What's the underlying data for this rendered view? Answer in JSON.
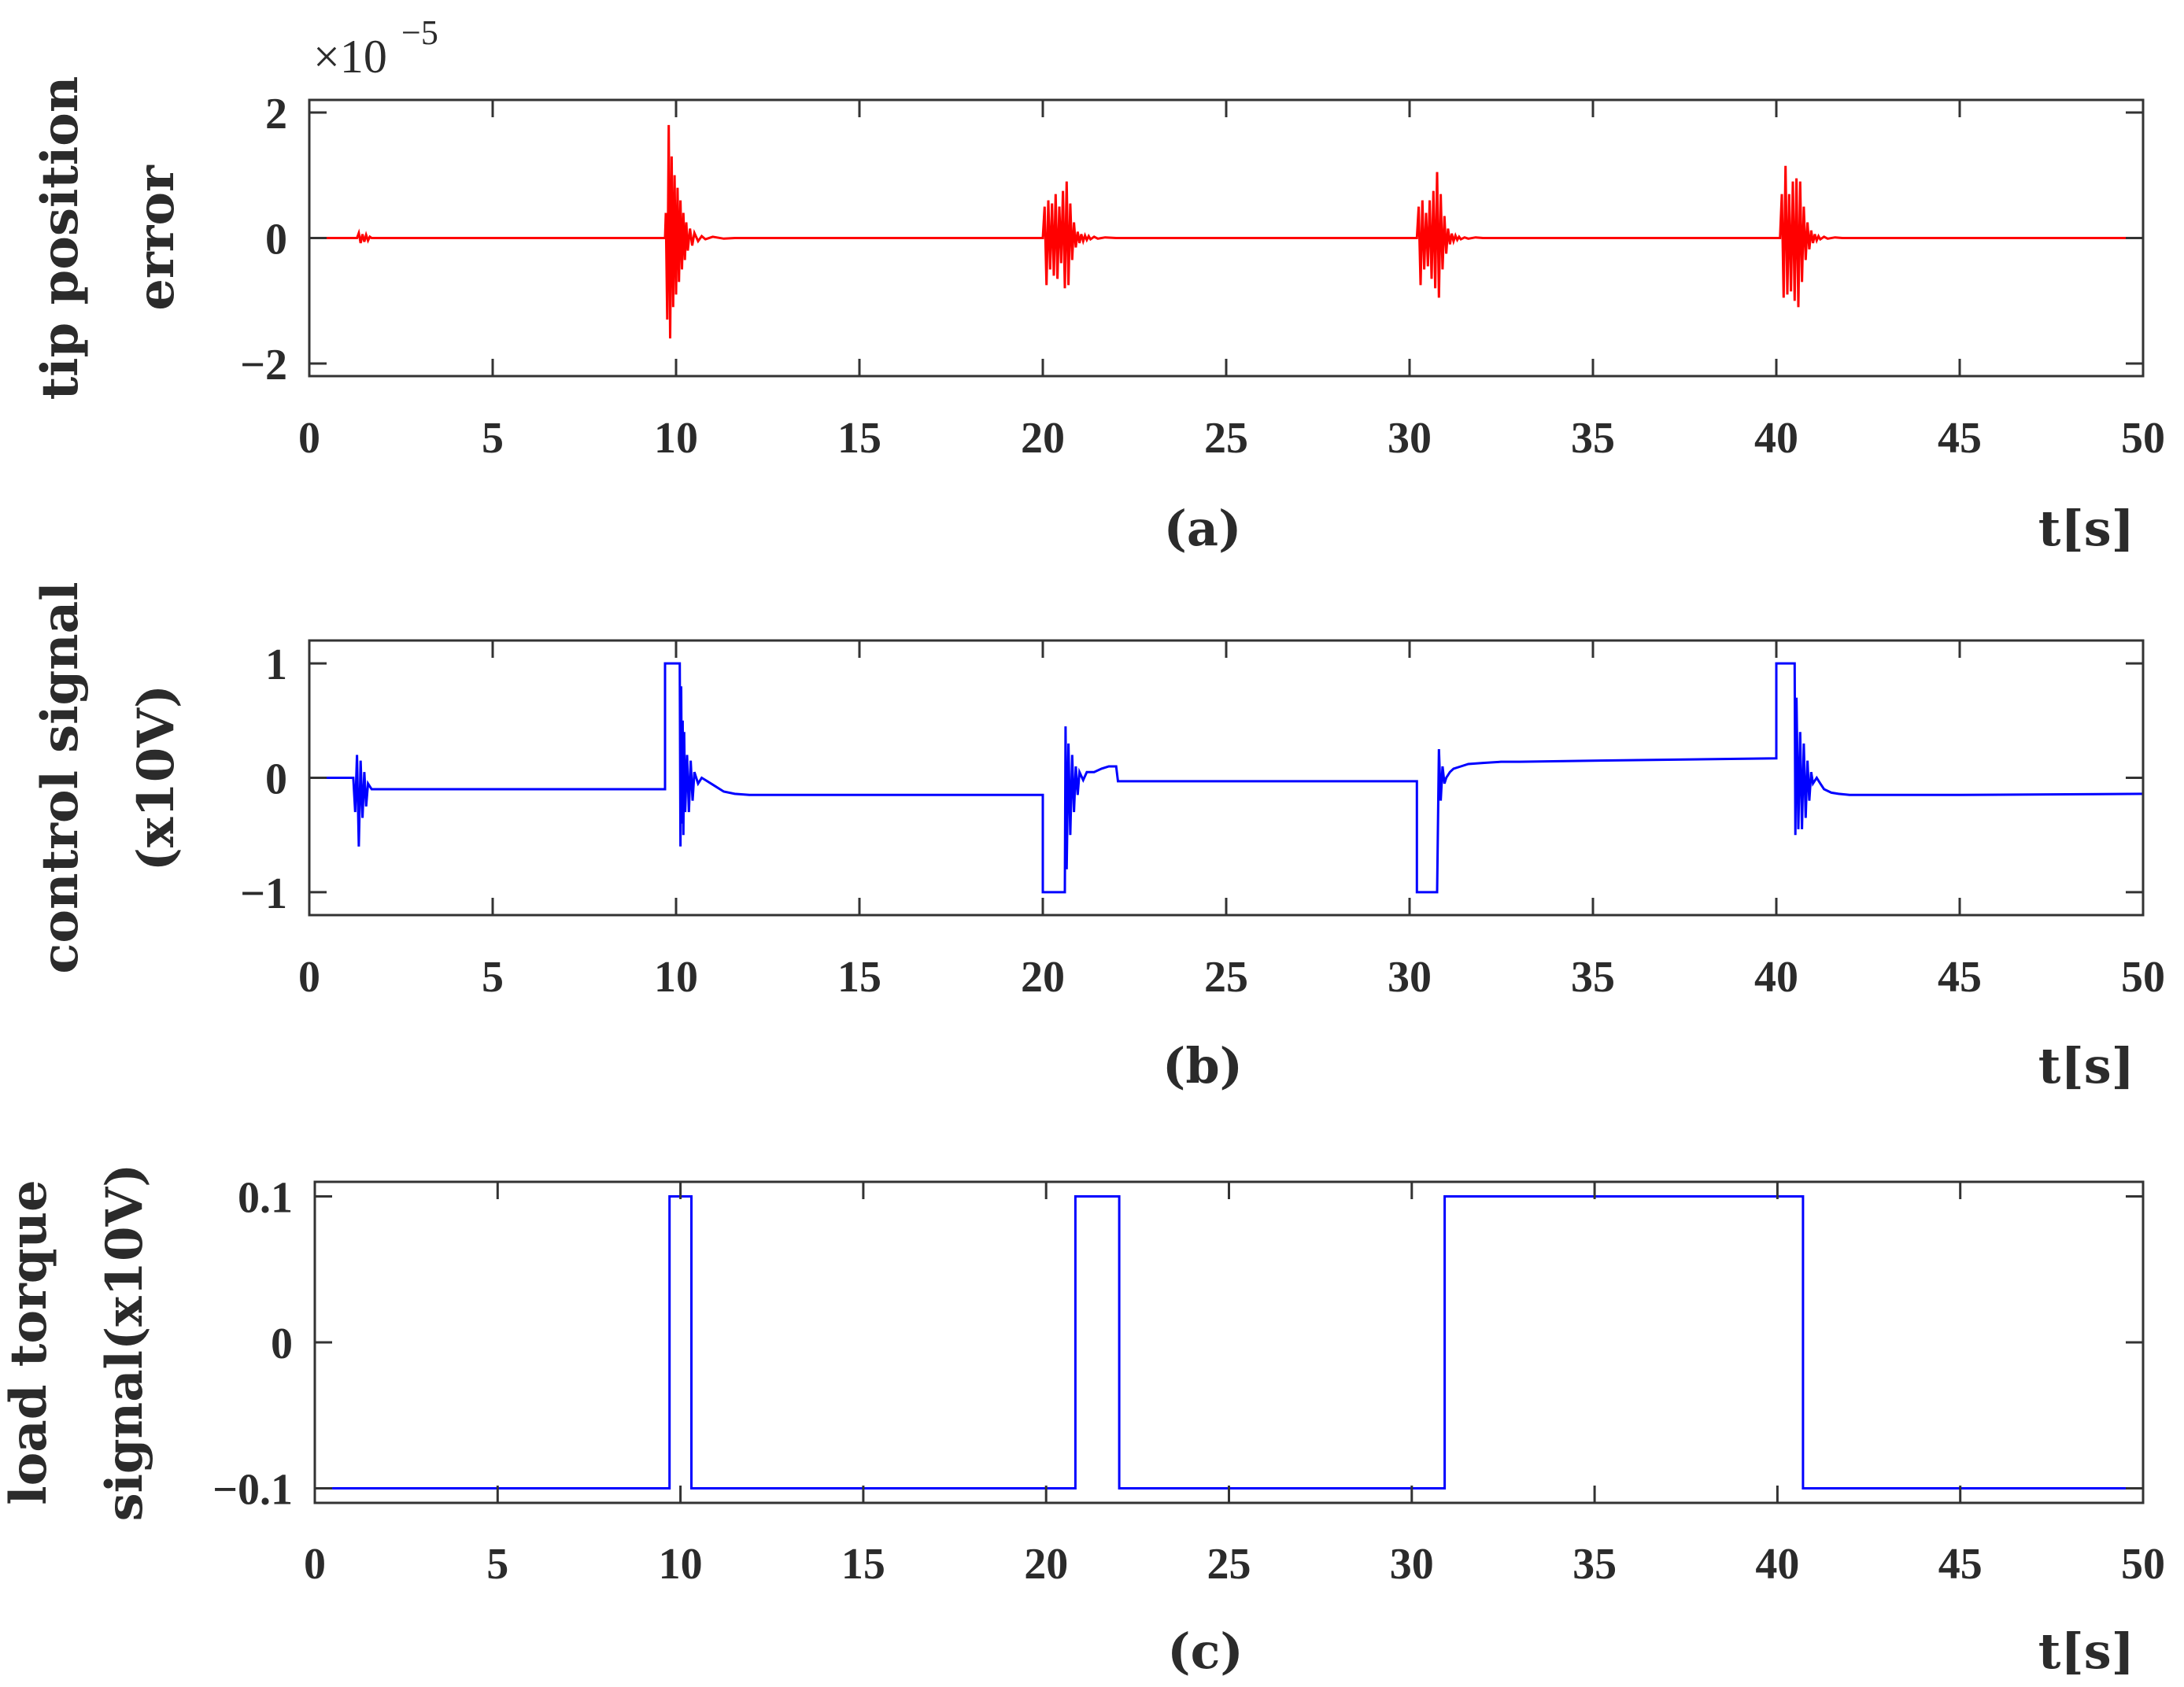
{
  "figure": {
    "chart_data": [
      {
        "type": "line",
        "panel": "a",
        "caption": "(a)",
        "xlabel": "t[s]",
        "ylabel_lines": [
          "tip position",
          "error"
        ],
        "exponent_label": "×10",
        "exponent_power": "−5",
        "xlim": [
          0,
          50
        ],
        "ylim": [
          -2.2,
          2.2
        ],
        "xticks": [
          0,
          5,
          10,
          15,
          20,
          25,
          30,
          35,
          40,
          45,
          50
        ],
        "xtick_labels": [
          "0",
          "5",
          "10",
          "15",
          "20",
          "25",
          "30",
          "35",
          "40",
          "45",
          "50"
        ],
        "yticks": [
          -2,
          0,
          2
        ],
        "ytick_labels": [
          "−2",
          "0",
          "2"
        ],
        "line_color": "#ff0000",
        "series": [
          {
            "x": [
              0,
              1.3,
              1.35,
              1.4,
              1.45,
              1.5,
              1.55,
              1.6,
              1.65,
              1.7,
              1.8,
              9.7,
              9.72,
              9.76,
              9.8,
              9.84,
              9.88,
              9.92,
              9.96,
              10.0,
              10.04,
              10.08,
              10.12,
              10.16,
              10.2,
              10.24,
              10.28,
              10.32,
              10.38,
              10.44,
              10.5,
              10.6,
              10.7,
              10.8,
              11.0,
              11.3,
              11.6,
              12.0,
              20.0,
              20.05,
              20.1,
              20.15,
              20.2,
              20.25,
              20.3,
              20.35,
              20.4,
              20.45,
              20.5,
              20.55,
              20.6,
              20.65,
              20.7,
              20.75,
              20.8,
              20.85,
              20.9,
              20.95,
              21.0,
              21.05,
              21.1,
              21.15,
              21.2,
              21.25,
              21.3,
              21.4,
              21.5,
              21.7,
              22.0,
              22.5,
              30.2,
              30.25,
              30.3,
              30.35,
              30.4,
              30.45,
              30.5,
              30.55,
              30.6,
              30.65,
              30.7,
              30.75,
              30.8,
              30.85,
              30.9,
              30.95,
              31.0,
              31.05,
              31.1,
              31.15,
              31.2,
              31.25,
              31.3,
              31.35,
              31.4,
              31.5,
              31.6,
              31.8,
              32.0,
              32.5,
              40.1,
              40.15,
              40.2,
              40.25,
              40.3,
              40.35,
              40.4,
              40.45,
              40.5,
              40.55,
              40.6,
              40.65,
              40.7,
              40.75,
              40.8,
              40.85,
              40.9,
              40.95,
              41.0,
              41.05,
              41.1,
              41.15,
              41.2,
              41.3,
              41.4,
              41.6,
              41.8,
              42.2,
              50
            ],
            "y": [
              0,
              0,
              0.08,
              -0.08,
              0.06,
              -0.06,
              0.05,
              -0.04,
              0.02,
              0,
              0,
              0,
              0.4,
              -1.3,
              1.8,
              -1.6,
              1.3,
              -1.1,
              1.0,
              -0.9,
              0.8,
              -0.7,
              0.6,
              -0.5,
              0.4,
              -0.35,
              0.25,
              -0.2,
              0.15,
              -0.12,
              0.08,
              -0.05,
              0.03,
              -0.02,
              0.02,
              -0.01,
              0,
              0,
              0,
              0.5,
              -0.75,
              0.6,
              -0.5,
              0.55,
              -0.6,
              0.7,
              -0.65,
              0.5,
              -0.4,
              0.75,
              -0.8,
              0.9,
              -0.75,
              0.55,
              -0.35,
              0.25,
              -0.15,
              0.1,
              -0.08,
              0.06,
              -0.05,
              0.04,
              -0.03,
              0.03,
              -0.02,
              0.02,
              -0.01,
              0.01,
              0,
              0,
              0,
              0.5,
              -0.75,
              0.6,
              -0.5,
              0.4,
              -0.45,
              0.6,
              -0.65,
              0.75,
              -0.8,
              1.05,
              -0.95,
              0.7,
              -0.5,
              0.35,
              -0.25,
              0.15,
              -0.1,
              0.07,
              -0.05,
              0.04,
              -0.03,
              0.02,
              -0.02,
              0.01,
              -0.01,
              0.01,
              0,
              0,
              0,
              0.7,
              -0.95,
              1.15,
              -0.9,
              0.7,
              -0.85,
              0.9,
              -1.0,
              0.95,
              -1.1,
              0.9,
              -0.7,
              0.5,
              -0.35,
              0.25,
              -0.18,
              0.12,
              -0.08,
              0.06,
              -0.04,
              0.03,
              -0.02,
              0.02,
              -0.01,
              0.01,
              0,
              0,
              0
            ]
          }
        ]
      },
      {
        "type": "line",
        "panel": "b",
        "caption": "(b)",
        "xlabel": "t[s]",
        "ylabel_lines": [
          "control signal",
          "(x10V)"
        ],
        "xlim": [
          0,
          50
        ],
        "ylim": [
          -1.2,
          1.2
        ],
        "xticks": [
          0,
          5,
          10,
          15,
          20,
          25,
          30,
          35,
          40,
          45,
          50
        ],
        "xtick_labels": [
          "0",
          "5",
          "10",
          "15",
          "20",
          "25",
          "30",
          "35",
          "40",
          "45",
          "50"
        ],
        "yticks": [
          -1,
          0,
          1
        ],
        "ytick_labels": [
          "−1",
          "0",
          "1"
        ],
        "line_color": "#0000ff",
        "series": [
          {
            "x": [
              0,
              1.2,
              1.25,
              1.3,
              1.35,
              1.4,
              1.45,
              1.5,
              1.55,
              1.6,
              1.7,
              1.8,
              5,
              9.7,
              9.7,
              10.1,
              10.12,
              10.14,
              10.16,
              10.18,
              10.2,
              10.22,
              10.25,
              10.3,
              10.35,
              10.4,
              10.45,
              10.5,
              10.6,
              10.7,
              10.8,
              11.0,
              11.3,
              11.6,
              12.0,
              15,
              20.0,
              20.0,
              20.6,
              20.62,
              20.65,
              20.7,
              20.75,
              20.8,
              20.85,
              20.9,
              20.95,
              21.0,
              21.1,
              21.2,
              21.4,
              21.6,
              21.8,
              22.0,
              22.05,
              25,
              30.2,
              30.2,
              30.75,
              30.8,
              30.85,
              30.9,
              30.95,
              31.0,
              31.1,
              31.2,
              31.4,
              31.6,
              32.0,
              32.5,
              33.0,
              35,
              40.0,
              40.0,
              40.5,
              40.52,
              40.55,
              40.6,
              40.65,
              40.7,
              40.75,
              40.8,
              40.85,
              40.9,
              40.95,
              41.0,
              41.1,
              41.2,
              41.3,
              41.5,
              41.7,
              42.0,
              42.5,
              45,
              50
            ],
            "y": [
              0,
              0,
              -0.3,
              0.2,
              -0.6,
              0.15,
              -0.35,
              0.05,
              -0.25,
              -0.05,
              -0.1,
              -0.1,
              -0.1,
              -0.1,
              1.0,
              1.0,
              -0.6,
              0.8,
              -0.4,
              0.5,
              -0.5,
              0.4,
              -0.3,
              0.2,
              -0.3,
              0.15,
              -0.2,
              0.05,
              -0.05,
              -0.0,
              -0.02,
              -0.06,
              -0.12,
              -0.14,
              -0.15,
              -0.15,
              -0.15,
              -1.0,
              -1.0,
              0.45,
              -0.8,
              0.3,
              -0.5,
              0.2,
              -0.3,
              0.1,
              -0.15,
              0.05,
              -0.02,
              0.05,
              0.05,
              0.08,
              0.1,
              0.1,
              -0.03,
              -0.03,
              -0.03,
              -1.0,
              -1.0,
              0.25,
              -0.2,
              0.1,
              -0.05,
              0.0,
              0.05,
              0.08,
              0.1,
              0.12,
              0.13,
              0.14,
              0.14,
              0.15,
              0.17,
              1.0,
              1.0,
              -0.5,
              0.7,
              -0.45,
              0.4,
              -0.45,
              0.3,
              -0.35,
              0.15,
              -0.2,
              0.05,
              -0.05,
              -0.0,
              -0.05,
              -0.1,
              -0.13,
              -0.14,
              -0.15,
              -0.15,
              -0.15,
              -0.14
            ]
          }
        ]
      },
      {
        "type": "line",
        "panel": "c",
        "caption": "(c)",
        "xlabel": "t[s]",
        "ylabel_lines": [
          "load torque",
          "signal(x10V)"
        ],
        "xlim": [
          0,
          50
        ],
        "ylim": [
          -0.11,
          0.11
        ],
        "xticks": [
          0,
          5,
          10,
          15,
          20,
          25,
          30,
          35,
          40,
          45,
          50
        ],
        "xtick_labels": [
          "0",
          "5",
          "10",
          "15",
          "20",
          "25",
          "30",
          "35",
          "40",
          "45",
          "50"
        ],
        "yticks": [
          -0.1,
          0,
          0.1
        ],
        "ytick_labels": [
          "−0.1",
          "0",
          "0.1"
        ],
        "line_color": "#0000ff",
        "series": [
          {
            "x": [
              0,
              9.7,
              9.7,
              10.3,
              10.3,
              20.8,
              20.8,
              22.0,
              22.0,
              30.9,
              30.9,
              40.7,
              40.7,
              50
            ],
            "y": [
              -0.1,
              -0.1,
              0.1,
              0.1,
              -0.1,
              -0.1,
              0.1,
              0.1,
              -0.1,
              -0.1,
              0.1,
              0.1,
              -0.1,
              -0.1
            ]
          }
        ]
      }
    ]
  }
}
